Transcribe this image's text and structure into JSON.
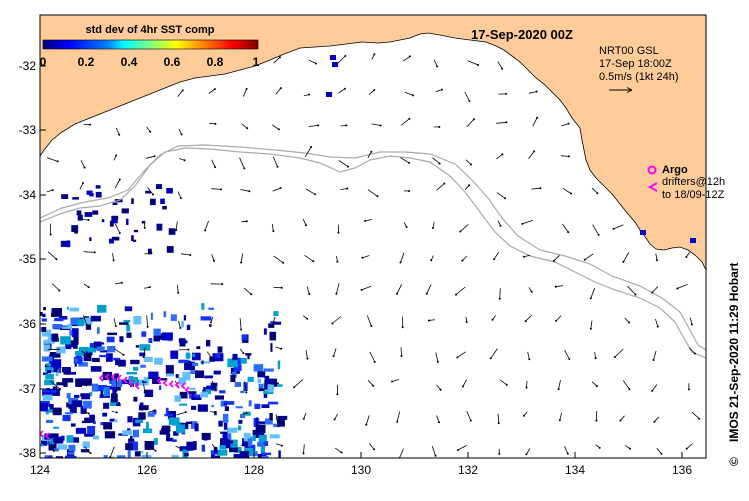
{
  "map": {
    "date_title": "17-Sep-2020 00Z",
    "colorbar": {
      "title": "std dev of 4hr SST comp",
      "ticks": [
        "0",
        "0.2",
        "0.4",
        "0.6",
        "0.8",
        "1"
      ],
      "colors": [
        "#00007f",
        "#0000ff",
        "#007fff",
        "#00ffff",
        "#7fff7f",
        "#ffff00",
        "#ff7f00",
        "#ff0000",
        "#7f0000"
      ]
    },
    "info": {
      "line1": "NRT00 GSL",
      "line2": "17-Sep 18:00Z",
      "line3": "0.5m/s (1kt 24h)"
    },
    "argo_label": "Argo",
    "drifters_line1": "drifters@12h",
    "drifters_line2": "to 18/09-12Z",
    "side_credit": "IMOS 21-Sep-2020 11:29 Hobart",
    "copyright_symbol": "©",
    "x_ticks": [
      "124",
      "126",
      "128",
      "130",
      "132",
      "134",
      "136"
    ],
    "y_ticks": [
      "-32",
      "-33",
      "-34",
      "-35",
      "-36",
      "-37",
      "-38"
    ],
    "land_color": "#ffcc99",
    "contour_color": "#aaaaaa",
    "drifter_color": "#ff00ff"
  }
}
